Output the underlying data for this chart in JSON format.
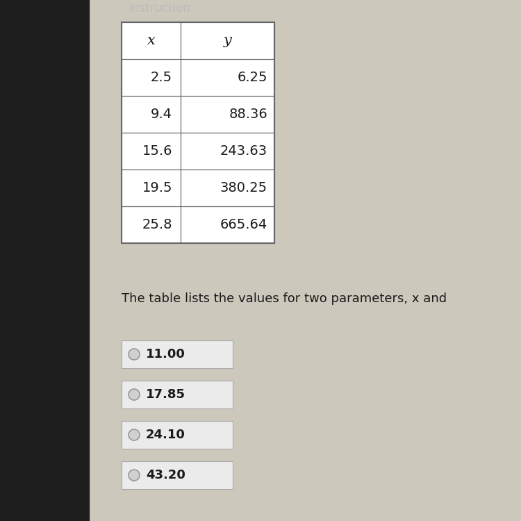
{
  "table_headers": [
    "x",
    "y"
  ],
  "table_data": [
    [
      "2.5",
      "6.25"
    ],
    [
      "9.4",
      "88.36"
    ],
    [
      "15.6",
      "243.63"
    ],
    [
      "19.5",
      "380.25"
    ],
    [
      "25.8",
      "665.64"
    ]
  ],
  "description_text": "The table lists the values for two parameters, x and",
  "choices": [
    "11.00",
    "17.85",
    "24.10",
    "43.20"
  ],
  "background_color": "#cdc8bc",
  "table_bg": "#ffffff",
  "choice_box_bg": "#ebebeb",
  "text_color": "#1a1a1a",
  "left_panel_color": "#1e1e1e",
  "top_text_color": "#bbbbbb"
}
